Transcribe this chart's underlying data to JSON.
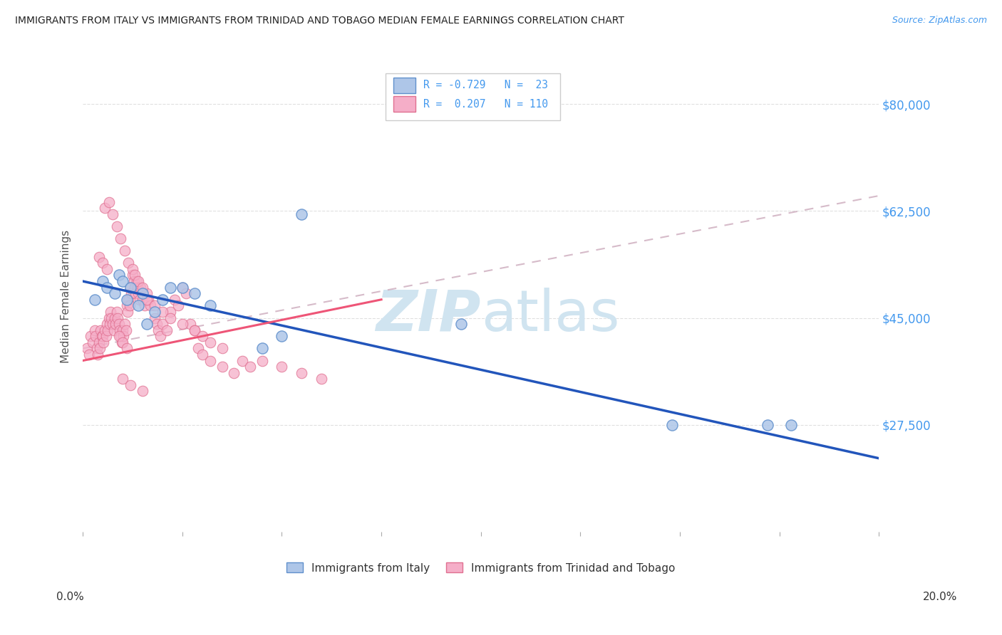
{
  "title": "IMMIGRANTS FROM ITALY VS IMMIGRANTS FROM TRINIDAD AND TOBAGO MEDIAN FEMALE EARNINGS CORRELATION CHART",
  "source": "Source: ZipAtlas.com",
  "ylabel": "Median Female Earnings",
  "y_ticks": [
    27500,
    45000,
    62500,
    80000
  ],
  "y_tick_labels": [
    "$27,500",
    "$45,000",
    "$62,500",
    "$80,000"
  ],
  "y_min": 10000,
  "y_max": 87000,
  "x_min": 0.0,
  "x_max": 20.0,
  "italy_color": "#aec6e8",
  "tt_color": "#f5aec8",
  "italy_edge_color": "#6090cc",
  "tt_edge_color": "#e07090",
  "italy_line_color": "#2255bb",
  "tt_solid_color": "#ee5577",
  "tt_dash_color": "#e8a0b8",
  "watermark_color": "#d0e4f0",
  "background_color": "#ffffff",
  "grid_color": "#dddddd",
  "tick_label_color": "#4499ee",
  "italy_x": [
    0.3,
    0.5,
    0.6,
    0.8,
    0.9,
    1.0,
    1.1,
    1.2,
    1.4,
    1.5,
    1.6,
    1.8,
    2.0,
    2.2,
    2.5,
    2.8,
    3.2,
    4.5,
    5.0,
    5.5,
    9.5,
    14.8,
    17.2,
    17.8
  ],
  "italy_y": [
    48000,
    51000,
    50000,
    49000,
    52000,
    51000,
    48000,
    50000,
    47000,
    49000,
    44000,
    46000,
    48000,
    50000,
    50000,
    49000,
    47000,
    40000,
    42000,
    62000,
    44000,
    27500,
    27500,
    27500
  ],
  "tt_x": [
    0.1,
    0.15,
    0.2,
    0.25,
    0.3,
    0.32,
    0.35,
    0.38,
    0.4,
    0.42,
    0.45,
    0.48,
    0.5,
    0.52,
    0.55,
    0.58,
    0.6,
    0.62,
    0.65,
    0.68,
    0.7,
    0.72,
    0.75,
    0.78,
    0.8,
    0.82,
    0.85,
    0.88,
    0.9,
    0.92,
    0.95,
    0.98,
    1.0,
    1.02,
    1.05,
    1.08,
    1.1,
    1.12,
    1.15,
    1.18,
    1.2,
    1.22,
    1.25,
    1.28,
    1.3,
    1.32,
    1.35,
    1.38,
    1.4,
    1.42,
    1.45,
    1.5,
    1.55,
    1.6,
    1.65,
    1.7,
    1.8,
    1.85,
    1.9,
    1.95,
    2.0,
    2.1,
    2.2,
    2.3,
    2.4,
    2.5,
    2.6,
    2.7,
    2.8,
    2.9,
    3.0,
    3.2,
    3.5,
    3.8,
    4.0,
    4.2,
    4.5,
    5.0,
    5.5,
    6.0,
    0.55,
    0.65,
    0.75,
    0.85,
    0.95,
    1.05,
    1.15,
    1.25,
    0.4,
    0.5,
    0.6,
    1.3,
    1.4,
    1.5,
    0.9,
    1.0,
    1.1,
    1.6,
    1.8,
    2.0,
    2.2,
    2.5,
    2.8,
    3.0,
    3.2,
    3.5,
    1.0,
    1.2,
    1.5
  ],
  "tt_y": [
    40000,
    39000,
    42000,
    41000,
    43000,
    42000,
    40000,
    39000,
    41000,
    40000,
    43000,
    42000,
    42000,
    41000,
    43000,
    42000,
    44000,
    43000,
    45000,
    44000,
    46000,
    45000,
    44000,
    43000,
    45000,
    44000,
    46000,
    45000,
    44000,
    43000,
    42000,
    41000,
    43000,
    42000,
    44000,
    43000,
    47000,
    46000,
    48000,
    47000,
    50000,
    49000,
    52000,
    51000,
    50000,
    49000,
    51000,
    50000,
    49000,
    48000,
    50000,
    48000,
    47000,
    49000,
    48000,
    47000,
    45000,
    44000,
    43000,
    42000,
    44000,
    43000,
    46000,
    48000,
    47000,
    50000,
    49000,
    44000,
    43000,
    40000,
    39000,
    38000,
    37000,
    36000,
    38000,
    37000,
    38000,
    37000,
    36000,
    35000,
    63000,
    64000,
    62000,
    60000,
    58000,
    56000,
    54000,
    53000,
    55000,
    54000,
    53000,
    52000,
    51000,
    50000,
    42000,
    41000,
    40000,
    48000,
    47000,
    46000,
    45000,
    44000,
    43000,
    42000,
    41000,
    40000,
    35000,
    34000,
    33000
  ],
  "italy_line_x0": 0.0,
  "italy_line_x1": 20.0,
  "italy_line_y0": 51000,
  "italy_line_y1": 22000,
  "tt_solid_x0": 0.0,
  "tt_solid_x1": 7.5,
  "tt_solid_y0": 38000,
  "tt_solid_y1": 48000,
  "tt_dash_x0": 0.0,
  "tt_dash_x1": 20.0,
  "tt_dash_y0": 40000,
  "tt_dash_y1": 65000
}
